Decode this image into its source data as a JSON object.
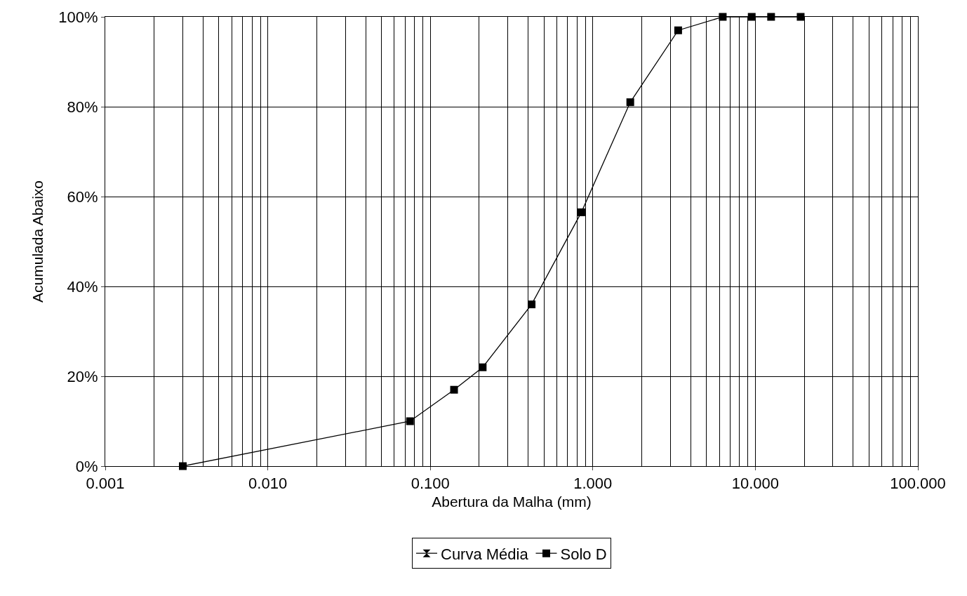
{
  "chart_data": {
    "type": "line",
    "xlabel": "Abertura da Malha (mm)",
    "ylabel": "Acumulada Abaixo",
    "x": [
      0.003,
      0.075,
      0.14,
      0.21,
      0.42,
      0.85,
      1.7,
      3.35,
      6.3,
      9.5,
      12.5,
      19
    ],
    "series": [
      {
        "name": "Curva Média",
        "color": "#000000",
        "marker": "hourglass",
        "values": [
          null,
          null,
          null,
          null,
          null,
          null,
          null,
          null,
          null,
          null,
          null,
          null
        ]
      },
      {
        "name": "Solo D",
        "color": "#000000",
        "marker": "square",
        "values": [
          0,
          10,
          17,
          22,
          36,
          56.5,
          81,
          97,
          100,
          100,
          100,
          100
        ]
      }
    ],
    "log": "x",
    "xlim": [
      0.001,
      100
    ],
    "ylim": [
      0,
      100
    ],
    "xticks": [
      0.001,
      {
        "value": 0.01,
        "label": "0.010"
      },
      {
        "value": 0.1,
        "label": "0.100"
      },
      {
        "value": 1,
        "label": "1.000"
      },
      {
        "value": 10,
        "label": "10.000"
      },
      {
        "value": 100,
        "label": "100.000"
      }
    ],
    "yticks": [
      {
        "value": 0,
        "label": "0%"
      },
      {
        "value": 20,
        "label": "20%"
      },
      {
        "value": 40,
        "label": "40%"
      },
      {
        "value": 60,
        "label": "60%"
      },
      {
        "value": 80,
        "label": "80%"
      },
      {
        "value": 100,
        "label": "100%"
      }
    ],
    "grid": true,
    "legend": "bottom",
    "line_style": "solid"
  }
}
